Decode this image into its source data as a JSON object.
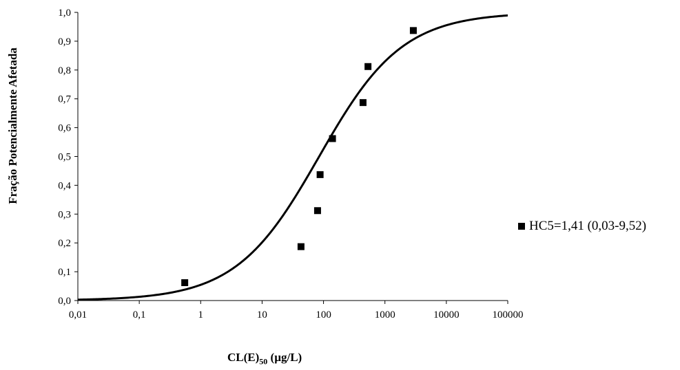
{
  "chart_data": {
    "type": "scatter",
    "title": "",
    "ylabel": "Fração Potencialmente Afetada",
    "xlabel_main": "CL(E)",
    "xlabel_sub": "50",
    "xlabel_unit": " (µg/L)",
    "x_scale": "log",
    "xlim": [
      0.01,
      100000
    ],
    "ylim": [
      0,
      1.0
    ],
    "x_ticks": [
      "0,01",
      "0,1",
      "1",
      "10",
      "100",
      "1000",
      "10000",
      "100000"
    ],
    "y_ticks": [
      "0,0",
      "0,1",
      "0,2",
      "0,3",
      "0,4",
      "0,5",
      "0,6",
      "0,7",
      "0,8",
      "0,9",
      "1,0"
    ],
    "grid": false,
    "series": [
      {
        "name": "HC5=1,41 (0,03-9,52)",
        "type": "scatter",
        "marker": "square",
        "color": "#000000",
        "points": [
          {
            "x": 0.55,
            "y": 0.062
          },
          {
            "x": 43,
            "y": 0.187
          },
          {
            "x": 80,
            "y": 0.312
          },
          {
            "x": 88,
            "y": 0.437
          },
          {
            "x": 140,
            "y": 0.562
          },
          {
            "x": 440,
            "y": 0.687
          },
          {
            "x": 530,
            "y": 0.812
          },
          {
            "x": 2900,
            "y": 0.937
          }
        ]
      },
      {
        "type": "line",
        "color": "#000000",
        "model": "log-logistic",
        "median_x": 85,
        "slope_log10": 1.15
      }
    ],
    "legend": {
      "placement": "right",
      "label": "HC5=1,41 (0,03-9,52)"
    }
  }
}
